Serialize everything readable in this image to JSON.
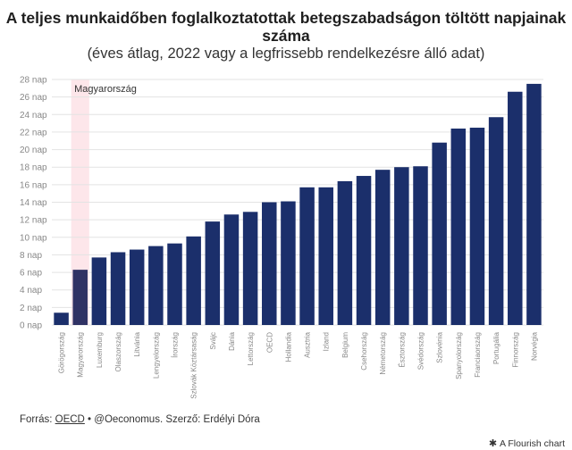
{
  "title": "A teljes munkaidőben foglalkoztatottak betegszabadságon töltött napjainak száma",
  "subtitle": "(éves átlag, 2022 vagy a legfrissebb rendelkezésre álló adat)",
  "highlight_label": "Magyarország",
  "footer": {
    "prefix": "Forrás: ",
    "link": "OECD",
    "rest": " • @Oeconomus. Szerző: Erdélyi Dóra"
  },
  "flourish": "A Flourish chart",
  "colors": {
    "bar": "#1b2f6b",
    "highlight_bar": "#2f3264",
    "highlight_band": "#fde6ea",
    "grid": "#e3e3e3",
    "axis_text": "#888888"
  },
  "chart_data": {
    "type": "bar",
    "title": "A teljes munkaidőben foglalkoztatottak betegszabadságon töltött napjainak száma",
    "subtitle": "(éves átlag, 2022 vagy a legfrissebb rendelkezésre álló adat)",
    "xlabel": "",
    "ylabel": "",
    "ylim": [
      0,
      28
    ],
    "y_ticks": [
      0,
      2,
      4,
      6,
      8,
      10,
      12,
      14,
      16,
      18,
      20,
      22,
      24,
      26,
      28
    ],
    "y_tick_suffix": " nap",
    "grid": true,
    "highlight": "Magyarország",
    "categories": [
      "Görögország",
      "Magyarország",
      "Luxemburg",
      "Olaszország",
      "Litvánia",
      "Lengyelország",
      "Írország",
      "Szlovák Köztársaság",
      "Svájc",
      "Dánia",
      "Lettország",
      "OECD",
      "Hollandia",
      "Ausztria",
      "Izland",
      "Belgium",
      "Csehország",
      "Németország",
      "Észtország",
      "Svédország",
      "Szlovénia",
      "Spanyolország",
      "Franciaország",
      "Portugália",
      "Finnország",
      "Norvégia"
    ],
    "values": [
      1.4,
      6.3,
      7.7,
      8.3,
      8.6,
      9.0,
      9.3,
      10.1,
      11.8,
      12.6,
      12.9,
      14.0,
      14.1,
      15.7,
      15.7,
      16.4,
      17.0,
      17.7,
      18.0,
      18.1,
      20.8,
      22.4,
      22.5,
      23.7,
      26.6,
      27.5
    ]
  }
}
